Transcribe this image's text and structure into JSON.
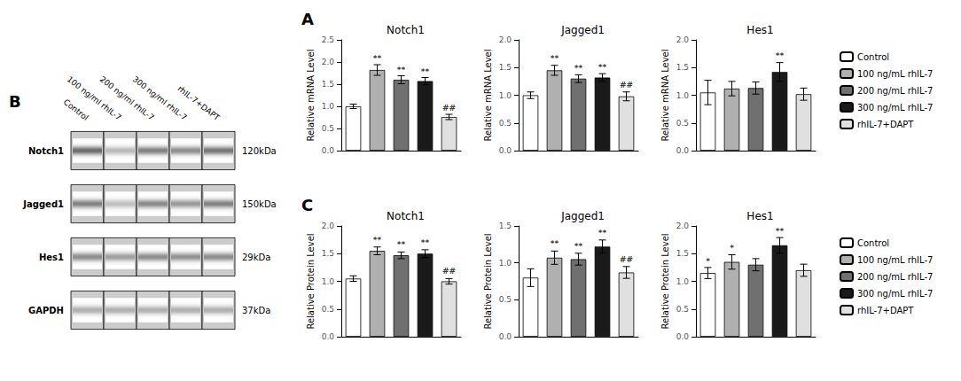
{
  "chart_data": [
    {
      "type": "heatmap",
      "panel": "B",
      "categories": [
        "Control",
        "100 ng/ml rhIL-7",
        "200 ng/ml rhIL-7",
        "300 ng/ml rhIL-7",
        "rhIL-7+DAPT"
      ],
      "rows": [
        "Notch1",
        "Jagged1",
        "Hes1",
        "GAPDH"
      ],
      "row_annotations": [
        "120kDa",
        "150kDa",
        "29kDa",
        "37kDa"
      ],
      "values": [
        [
          0.65,
          0.3,
          0.55,
          0.5,
          0.6
        ],
        [
          0.55,
          0.28,
          0.52,
          0.45,
          0.55
        ],
        [
          0.5,
          0.42,
          0.5,
          0.48,
          0.5
        ],
        [
          0.35,
          0.35,
          0.35,
          0.35,
          0.35
        ]
      ]
    },
    {
      "type": "bar",
      "panel": "A",
      "title": "Notch1",
      "ylabel": "Relative mRNA Level",
      "categories": [
        "Control",
        "100 ng/mL rhIL-7",
        "200 ng/mL rhIL-7",
        "300 ng/mL rhIL-7",
        "rhIL-7+DAPT"
      ],
      "colors": [
        "#ffffff",
        "#b0b0b0",
        "#707070",
        "#1a1a1a",
        "#e0e0e0"
      ],
      "values": [
        1.0,
        1.82,
        1.6,
        1.57,
        0.76
      ],
      "errors": [
        0.05,
        0.12,
        0.09,
        0.08,
        0.06
      ],
      "annotations": [
        {
          "x": "100 ng/mL rhIL-7",
          "y": 1.97,
          "text": "**"
        },
        {
          "x": "200 ng/mL rhIL-7",
          "y": 1.72,
          "text": "**"
        },
        {
          "x": "300 ng/mL rhIL-7",
          "y": 1.68,
          "text": "**"
        },
        {
          "x": "rhIL-7+DAPT",
          "y": 0.85,
          "text": "##"
        }
      ],
      "ylim": [
        0,
        2.5
      ],
      "yticks": [
        {
          "value": 0,
          "label": "0.0"
        },
        0.5,
        {
          "value": 1,
          "label": "1.0"
        },
        1.5,
        {
          "value": 2,
          "label": "2.0"
        },
        2.5
      ],
      "grid": false,
      "tick_labels": "y"
    },
    {
      "type": "bar",
      "title": "Jagged1",
      "ylabel": "Relative mRNA Level",
      "categories": [
        "Control",
        "100 ng/mL rhIL-7",
        "200 ng/mL rhIL-7",
        "300 ng/mL rhIL-7",
        "rhIL-7+DAPT"
      ],
      "colors": [
        "#ffffff",
        "#b0b0b0",
        "#707070",
        "#1a1a1a",
        "#e0e0e0"
      ],
      "values": [
        1.0,
        1.45,
        1.3,
        1.32,
        0.98
      ],
      "errors": [
        0.06,
        0.09,
        0.07,
        0.07,
        0.08
      ],
      "annotations": [
        {
          "x": "100 ng/mL rhIL-7",
          "y": 1.58,
          "text": "**"
        },
        {
          "x": "200 ng/mL rhIL-7",
          "y": 1.4,
          "text": "**"
        },
        {
          "x": "300 ng/mL rhIL-7",
          "y": 1.42,
          "text": "**"
        },
        {
          "x": "rhIL-7+DAPT",
          "y": 1.09,
          "text": "##"
        }
      ],
      "ylim": [
        0,
        2.0
      ],
      "yticks": [
        {
          "value": 0,
          "label": "0.0"
        },
        0.5,
        {
          "value": 1,
          "label": "1.0"
        },
        1.5,
        {
          "value": 2,
          "label": "2.0"
        }
      ],
      "grid": false,
      "tick_labels": "y"
    },
    {
      "type": "bar",
      "title": "Hes1",
      "ylabel": "Relative mRNA Level",
      "categories": [
        "Control",
        "100 ng/mL rhIL-7",
        "200 ng/mL rhIL-7",
        "300 ng/mL rhIL-7",
        "rhIL-7+DAPT"
      ],
      "colors": [
        "#ffffff",
        "#b0b0b0",
        "#707070",
        "#1a1a1a",
        "#e0e0e0"
      ],
      "values": [
        1.05,
        1.12,
        1.13,
        1.42,
        1.02
      ],
      "errors": [
        0.22,
        0.13,
        0.11,
        0.17,
        0.11
      ],
      "annotations": [
        {
          "x": "300 ng/mL rhIL-7",
          "y": 1.63,
          "text": "**"
        }
      ],
      "ylim": [
        0,
        2.0
      ],
      "yticks": [
        {
          "value": 0,
          "label": "0.0"
        },
        0.5,
        {
          "value": 1,
          "label": "1.0"
        },
        1.5,
        {
          "value": 2,
          "label": "2.0"
        }
      ],
      "grid": false,
      "tick_labels": "y",
      "legend": "right"
    },
    {
      "type": "bar",
      "panel": "C",
      "title": "Notch1",
      "ylabel": "Relative Protein Level",
      "categories": [
        "Control",
        "100 ng/mL rhIL-7",
        "200 ng/mL rhIL-7",
        "300 ng/mL rhIL-7",
        "rhIL-7+DAPT"
      ],
      "colors": [
        "#ffffff",
        "#b0b0b0",
        "#707070",
        "#1a1a1a",
        "#e0e0e0"
      ],
      "values": [
        1.05,
        1.55,
        1.47,
        1.5,
        1.0
      ],
      "errors": [
        0.05,
        0.07,
        0.06,
        0.07,
        0.05
      ],
      "annotations": [
        {
          "x": "100 ng/mL rhIL-7",
          "y": 1.66,
          "text": "**"
        },
        {
          "x": "200 ng/mL rhIL-7",
          "y": 1.57,
          "text": "**"
        },
        {
          "x": "300 ng/mL rhIL-7",
          "y": 1.61,
          "text": "**"
        },
        {
          "x": "rhIL-7+DAPT",
          "y": 1.09,
          "text": "##"
        }
      ],
      "ylim": [
        0,
        2.0
      ],
      "yticks": [
        {
          "value": 0,
          "label": "0.0"
        },
        0.5,
        {
          "value": 1,
          "label": "1.0"
        },
        1.5,
        {
          "value": 2,
          "label": "2.0"
        }
      ],
      "grid": false,
      "tick_labels": "y"
    },
    {
      "type": "bar",
      "title": "Jagged1",
      "ylabel": "Relative Protein Level",
      "categories": [
        "Control",
        "100 ng/mL rhIL-7",
        "200 ng/mL rhIL-7",
        "300 ng/mL rhIL-7",
        "rhIL-7+DAPT"
      ],
      "colors": [
        "#ffffff",
        "#b0b0b0",
        "#707070",
        "#1a1a1a",
        "#e0e0e0"
      ],
      "values": [
        0.8,
        1.07,
        1.05,
        1.22,
        0.87
      ],
      "errors": [
        0.12,
        0.09,
        0.08,
        0.09,
        0.08
      ],
      "annotations": [
        {
          "x": "100 ng/mL rhIL-7",
          "y": 1.19,
          "text": "**"
        },
        {
          "x": "200 ng/mL rhIL-7",
          "y": 1.16,
          "text": "**"
        },
        {
          "x": "300 ng/mL rhIL-7",
          "y": 1.34,
          "text": "**"
        },
        {
          "x": "rhIL-7+DAPT",
          "y": 0.98,
          "text": "##"
        }
      ],
      "ylim": [
        0,
        1.5
      ],
      "yticks": [
        {
          "value": 0,
          "label": "0.0"
        },
        0.5,
        {
          "value": 1,
          "label": "1.0"
        },
        1.5
      ],
      "grid": false,
      "tick_labels": "y"
    },
    {
      "type": "bar",
      "title": "Hes1",
      "ylabel": "Relative Protein Level",
      "categories": [
        "Control",
        "100 ng/mL rhIL-7",
        "200 ng/mL rhIL-7",
        "300 ng/mL rhIL-7",
        "rhIL-7+DAPT"
      ],
      "colors": [
        "#ffffff",
        "#b0b0b0",
        "#707070",
        "#1a1a1a",
        "#e0e0e0"
      ],
      "values": [
        1.15,
        1.35,
        1.3,
        1.65,
        1.2
      ],
      "errors": [
        0.1,
        0.13,
        0.11,
        0.14,
        0.11
      ],
      "annotations": [
        {
          "x": "Control",
          "y": 1.28,
          "text": "*"
        },
        {
          "x": "100 ng/mL rhIL-7",
          "y": 1.51,
          "text": "*"
        },
        {
          "x": "300 ng/mL rhIL-7",
          "y": 1.82,
          "text": "**"
        }
      ],
      "ylim": [
        0,
        2.0
      ],
      "yticks": [
        {
          "value": 0,
          "label": "0.0"
        },
        0.5,
        {
          "value": 1,
          "label": "1.0"
        },
        1.5,
        {
          "value": 2,
          "label": "2.0"
        }
      ],
      "grid": false,
      "tick_labels": "y",
      "legend": "right"
    }
  ]
}
